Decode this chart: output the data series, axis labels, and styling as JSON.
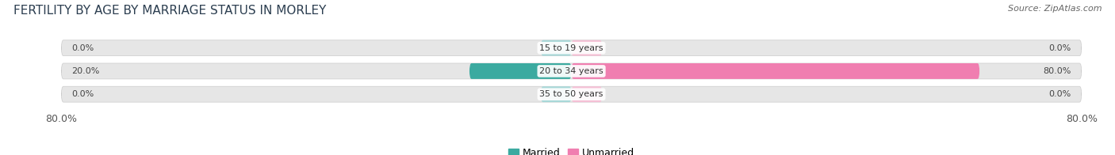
{
  "title": "FERTILITY BY AGE BY MARRIAGE STATUS IN MORLEY",
  "source": "Source: ZipAtlas.com",
  "categories": [
    "15 to 19 years",
    "20 to 34 years",
    "35 to 50 years"
  ],
  "married_values": [
    0.0,
    20.0,
    0.0
  ],
  "unmarried_values": [
    0.0,
    80.0,
    0.0
  ],
  "married_color": "#3BAAA0",
  "unmarried_color": "#F07EB0",
  "married_light_color": "#A8D8D8",
  "unmarried_light_color": "#F5C0D5",
  "bar_bg_color": "#E8E8E8",
  "bar_height": 0.68,
  "xlim": [
    -100,
    100
  ],
  "scale": 80,
  "x_tick_labels": [
    "80.0%",
    "80.0%"
  ],
  "title_fontsize": 11,
  "source_fontsize": 8,
  "label_fontsize": 8,
  "tick_fontsize": 9,
  "legend_fontsize": 9,
  "figure_bg": "#FFFFFF",
  "bar_bg": "#E6E6E6",
  "small_bar_width": 6
}
